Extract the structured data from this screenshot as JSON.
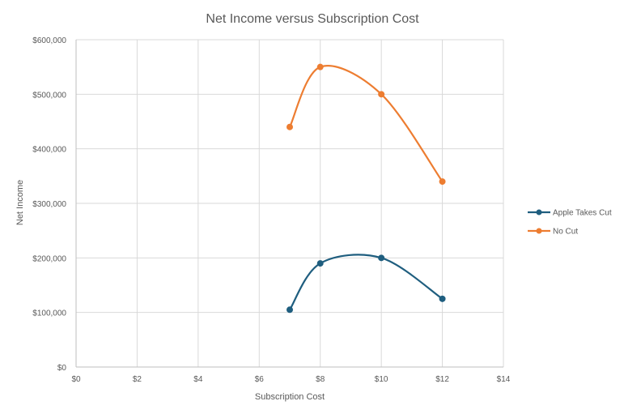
{
  "chart_data": {
    "type": "scatter",
    "title": "Net Income versus Subscription Cost",
    "xlabel": "Subscription Cost",
    "ylabel": "Net Income",
    "xlim": [
      0,
      14
    ],
    "ylim": [
      0,
      600000
    ],
    "x_ticks": [
      "$0",
      "$2",
      "$4",
      "$6",
      "$8",
      "$10",
      "$12",
      "$14"
    ],
    "y_ticks": [
      "$0",
      "$100,000",
      "$200,000",
      "$300,000",
      "$400,000",
      "$500,000",
      "$600,000"
    ],
    "grid": true,
    "smooth_lines": true,
    "legend_position": "right",
    "series": [
      {
        "name": "Apple Takes Cut",
        "color": "#1f5e7f",
        "points": [
          [
            7,
            105000
          ],
          [
            8,
            190000
          ],
          [
            10,
            200000
          ],
          [
            12,
            125000
          ]
        ]
      },
      {
        "name": "No Cut",
        "color": "#ed7d31",
        "points": [
          [
            7,
            440000
          ],
          [
            8,
            550000
          ],
          [
            10,
            500000
          ],
          [
            12,
            340000
          ]
        ]
      }
    ]
  }
}
